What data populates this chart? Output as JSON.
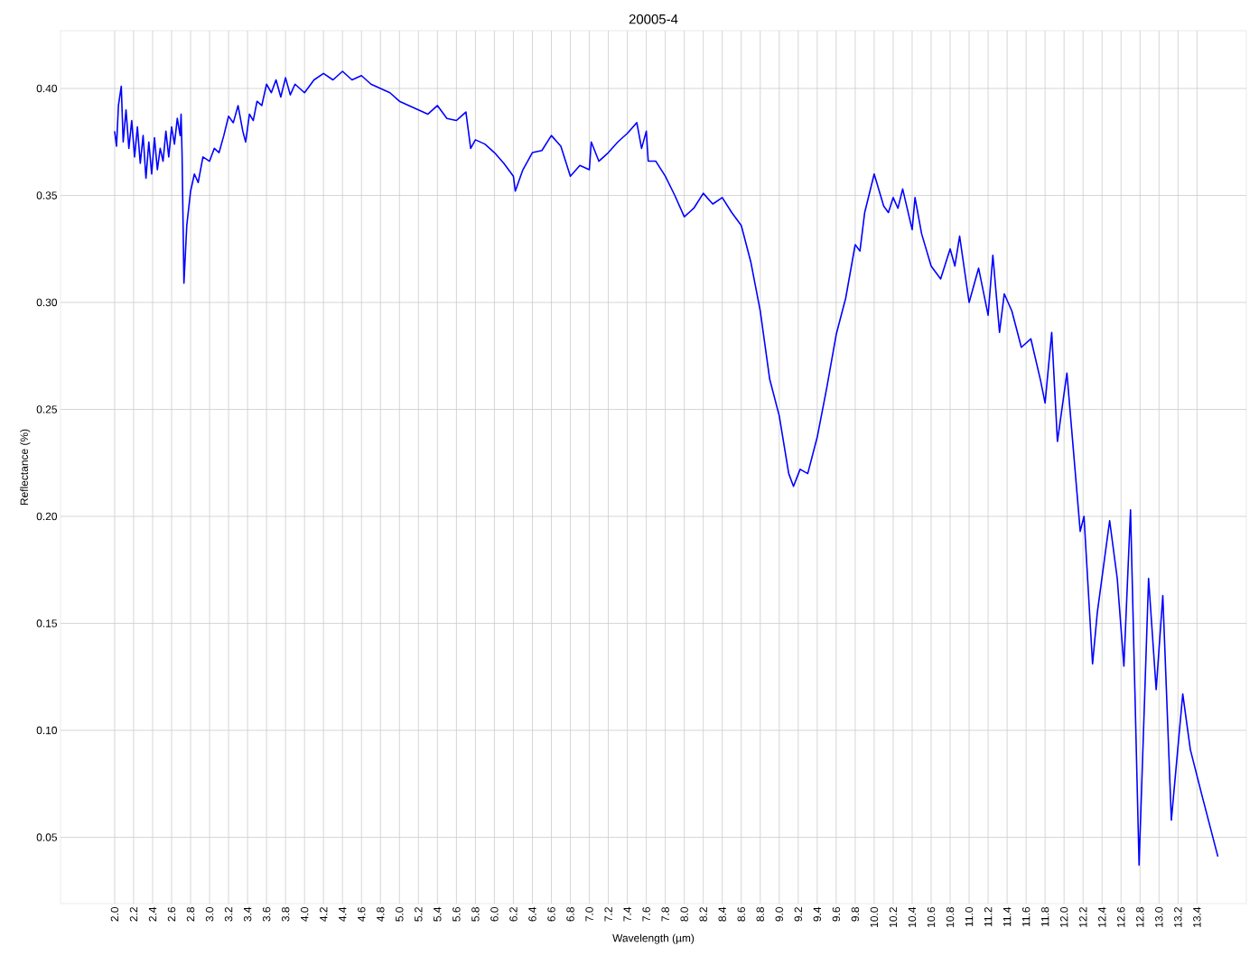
{
  "chart_data": {
    "type": "line",
    "title": "20005-4",
    "xlabel": "Wavelength (µm)",
    "ylabel": "Reflectance (%)",
    "color": "#0000ff",
    "grid": true,
    "line_style": "solid",
    "xlim": [
      1.43,
      13.92
    ],
    "ylim": [
      0.019,
      0.427
    ],
    "xticks": [
      {
        "value": 2.0,
        "label": "2.0"
      },
      {
        "value": 2.2,
        "label": "2.2"
      },
      {
        "value": 2.4,
        "label": "2.4"
      },
      {
        "value": 2.6,
        "label": "2.6"
      },
      {
        "value": 2.8,
        "label": "2.8"
      },
      {
        "value": 3.0,
        "label": "3.0"
      },
      {
        "value": 3.2,
        "label": "3.2"
      },
      {
        "value": 3.4,
        "label": "3.4"
      },
      {
        "value": 3.6,
        "label": "3.6"
      },
      {
        "value": 3.8,
        "label": "3.8"
      },
      {
        "value": 4.0,
        "label": "4.0"
      },
      {
        "value": 4.2,
        "label": "4.2"
      },
      {
        "value": 4.4,
        "label": "4.4"
      },
      {
        "value": 4.6,
        "label": "4.6"
      },
      {
        "value": 4.8,
        "label": "4.8"
      },
      {
        "value": 5.0,
        "label": "5.0"
      },
      {
        "value": 5.2,
        "label": "5.2"
      },
      {
        "value": 5.4,
        "label": "5.4"
      },
      {
        "value": 5.6,
        "label": "5.6"
      },
      {
        "value": 5.8,
        "label": "5.8"
      },
      {
        "value": 6.0,
        "label": "6.0"
      },
      {
        "value": 6.2,
        "label": "6.2"
      },
      {
        "value": 6.4,
        "label": "6.4"
      },
      {
        "value": 6.6,
        "label": "6.6"
      },
      {
        "value": 6.8,
        "label": "6.8"
      },
      {
        "value": 7.0,
        "label": "7.0"
      },
      {
        "value": 7.2,
        "label": "7.2"
      },
      {
        "value": 7.4,
        "label": "7.4"
      },
      {
        "value": 7.6,
        "label": "7.6"
      },
      {
        "value": 7.8,
        "label": "7.8"
      },
      {
        "value": 8.0,
        "label": "8.0"
      },
      {
        "value": 8.2,
        "label": "8.2"
      },
      {
        "value": 8.4,
        "label": "8.4"
      },
      {
        "value": 8.6,
        "label": "8.6"
      },
      {
        "value": 8.8,
        "label": "8.8"
      },
      {
        "value": 9.0,
        "label": "9.0"
      },
      {
        "value": 9.2,
        "label": "9.2"
      },
      {
        "value": 9.4,
        "label": "9.4"
      },
      {
        "value": 9.6,
        "label": "9.6"
      },
      {
        "value": 9.8,
        "label": "9.8"
      },
      {
        "value": 10.0,
        "label": "10.0"
      },
      {
        "value": 10.2,
        "label": "10.2"
      },
      {
        "value": 10.4,
        "label": "10.4"
      },
      {
        "value": 10.6,
        "label": "10.6"
      },
      {
        "value": 10.8,
        "label": "10.8"
      },
      {
        "value": 11.0,
        "label": "11.0"
      },
      {
        "value": 11.2,
        "label": "11.2"
      },
      {
        "value": 11.4,
        "label": "11.4"
      },
      {
        "value": 11.6,
        "label": "11.6"
      },
      {
        "value": 11.8,
        "label": "11.8"
      },
      {
        "value": 12.0,
        "label": "12.0"
      },
      {
        "value": 12.2,
        "label": "12.2"
      },
      {
        "value": 12.4,
        "label": "12.4"
      },
      {
        "value": 12.6,
        "label": "12.6"
      },
      {
        "value": 12.8,
        "label": "12.8"
      },
      {
        "value": 13.0,
        "label": "13.0"
      },
      {
        "value": 13.2,
        "label": "13.2"
      },
      {
        "value": 13.4,
        "label": "13.4"
      }
    ],
    "yticks": [
      {
        "value": 0.05,
        "label": "0.05"
      },
      {
        "value": 0.1,
        "label": "0.10"
      },
      {
        "value": 0.15,
        "label": "0.15"
      },
      {
        "value": 0.2,
        "label": "0.20"
      },
      {
        "value": 0.25,
        "label": "0.25"
      },
      {
        "value": 0.3,
        "label": "0.30"
      },
      {
        "value": 0.35,
        "label": "0.35"
      },
      {
        "value": 0.4,
        "label": "0.40"
      }
    ],
    "x": [
      2.0,
      2.02,
      2.04,
      2.07,
      2.09,
      2.12,
      2.15,
      2.18,
      2.21,
      2.24,
      2.27,
      2.3,
      2.33,
      2.36,
      2.39,
      2.42,
      2.45,
      2.48,
      2.51,
      2.54,
      2.57,
      2.6,
      2.63,
      2.66,
      2.69,
      2.7,
      2.71,
      2.73,
      2.76,
      2.8,
      2.84,
      2.88,
      2.93,
      3.0,
      3.05,
      3.1,
      3.15,
      3.2,
      3.25,
      3.3,
      3.35,
      3.38,
      3.42,
      3.46,
      3.5,
      3.55,
      3.6,
      3.65,
      3.7,
      3.75,
      3.8,
      3.85,
      3.9,
      4.0,
      4.1,
      4.2,
      4.3,
      4.4,
      4.5,
      4.6,
      4.7,
      4.8,
      4.9,
      5.0,
      5.1,
      5.2,
      5.3,
      5.4,
      5.5,
      5.6,
      5.7,
      5.75,
      5.8,
      5.9,
      6.0,
      6.1,
      6.2,
      6.22,
      6.3,
      6.4,
      6.5,
      6.6,
      6.7,
      6.8,
      6.9,
      7.0,
      7.02,
      7.1,
      7.2,
      7.3,
      7.4,
      7.5,
      7.55,
      7.6,
      7.62,
      7.7,
      7.8,
      7.9,
      8.0,
      8.1,
      8.2,
      8.3,
      8.4,
      8.5,
      8.6,
      8.7,
      8.8,
      8.9,
      9.0,
      9.1,
      9.15,
      9.22,
      9.3,
      9.4,
      9.5,
      9.6,
      9.7,
      9.8,
      9.85,
      9.9,
      10.0,
      10.1,
      10.15,
      10.2,
      10.25,
      10.3,
      10.4,
      10.43,
      10.5,
      10.6,
      10.7,
      10.8,
      10.85,
      10.9,
      11.0,
      11.1,
      11.2,
      11.25,
      11.32,
      11.37,
      11.45,
      11.55,
      11.65,
      11.75,
      11.8,
      11.87,
      11.93,
      12.03,
      12.1,
      12.17,
      12.21,
      12.3,
      12.35,
      12.48,
      12.56,
      12.63,
      12.7,
      12.79,
      12.89,
      12.97,
      13.04,
      13.13,
      13.25,
      13.33,
      13.45,
      13.62
    ],
    "values": [
      0.38,
      0.373,
      0.392,
      0.401,
      0.375,
      0.39,
      0.372,
      0.385,
      0.368,
      0.382,
      0.365,
      0.378,
      0.358,
      0.375,
      0.36,
      0.377,
      0.362,
      0.372,
      0.366,
      0.38,
      0.368,
      0.382,
      0.374,
      0.386,
      0.378,
      0.388,
      0.37,
      0.309,
      0.336,
      0.352,
      0.36,
      0.356,
      0.368,
      0.366,
      0.372,
      0.37,
      0.378,
      0.387,
      0.384,
      0.392,
      0.38,
      0.375,
      0.388,
      0.385,
      0.394,
      0.392,
      0.402,
      0.398,
      0.404,
      0.396,
      0.405,
      0.397,
      0.402,
      0.398,
      0.404,
      0.407,
      0.404,
      0.408,
      0.404,
      0.406,
      0.402,
      0.4,
      0.398,
      0.394,
      0.392,
      0.39,
      0.388,
      0.392,
      0.386,
      0.385,
      0.389,
      0.372,
      0.376,
      0.374,
      0.37,
      0.365,
      0.359,
      0.352,
      0.362,
      0.37,
      0.371,
      0.378,
      0.373,
      0.359,
      0.364,
      0.362,
      0.375,
      0.366,
      0.37,
      0.375,
      0.379,
      0.384,
      0.372,
      0.38,
      0.366,
      0.366,
      0.359,
      0.35,
      0.34,
      0.344,
      0.351,
      0.346,
      0.349,
      0.342,
      0.336,
      0.319,
      0.296,
      0.264,
      0.247,
      0.22,
      0.214,
      0.222,
      0.22,
      0.237,
      0.26,
      0.285,
      0.302,
      0.327,
      0.324,
      0.342,
      0.36,
      0.345,
      0.342,
      0.349,
      0.344,
      0.353,
      0.334,
      0.349,
      0.332,
      0.317,
      0.311,
      0.325,
      0.317,
      0.331,
      0.3,
      0.316,
      0.294,
      0.322,
      0.286,
      0.304,
      0.296,
      0.279,
      0.283,
      0.264,
      0.253,
      0.286,
      0.235,
      0.267,
      0.23,
      0.193,
      0.2,
      0.131,
      0.155,
      0.198,
      0.171,
      0.13,
      0.203,
      0.037,
      0.171,
      0.119,
      0.163,
      0.058,
      0.117,
      0.091,
      0.07,
      0.041
    ]
  }
}
